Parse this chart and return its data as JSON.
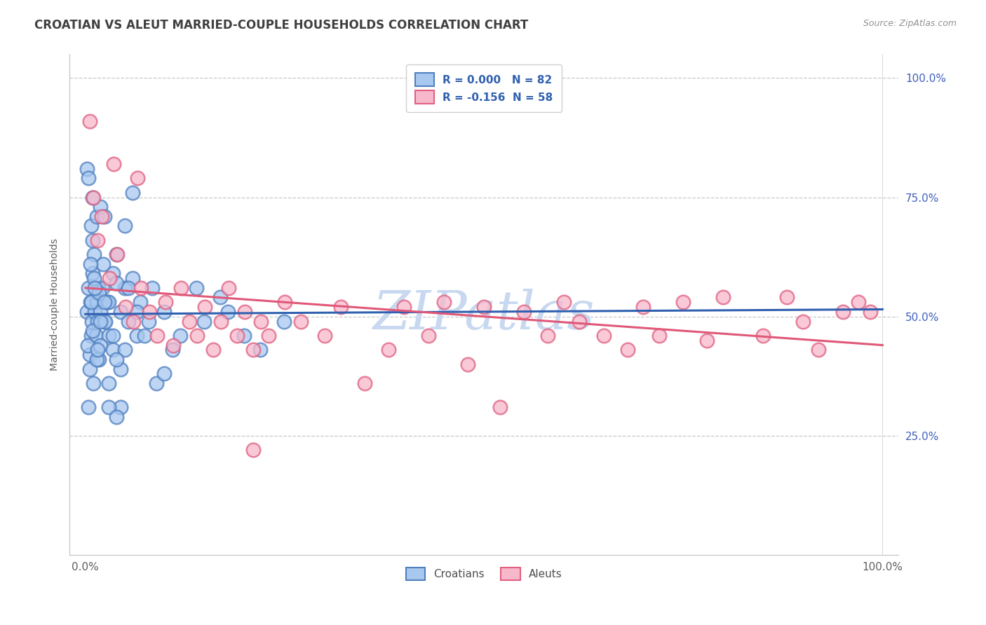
{
  "title": "CROATIAN VS ALEUT MARRIED-COUPLE HOUSEHOLDS CORRELATION CHART",
  "source": "Source: ZipAtlas.com",
  "ylabel": "Married-couple Households",
  "x_tick_labels": [
    "0.0%",
    "100.0%"
  ],
  "x_tick_positions": [
    0.0,
    100.0
  ],
  "y_tick_labels": [
    "25.0%",
    "50.0%",
    "75.0%",
    "100.0%"
  ],
  "y_tick_positions": [
    25.0,
    50.0,
    75.0,
    100.0
  ],
  "xlim": [
    -2.0,
    102.0
  ],
  "ylim": [
    0.0,
    105.0
  ],
  "legend_label_1": "R = 0.000   N = 82",
  "legend_label_2": "R = -0.156  N = 58",
  "legend_croatians": "Croatians",
  "legend_aleuts": "Aleuts",
  "color_blue_fill": "#a8c8f0",
  "color_blue_edge": "#5080c0",
  "color_pink_fill": "#f8b8cc",
  "color_pink_edge": "#e06080",
  "color_blue_line": "#3060b0",
  "color_pink_line": "#e05878",
  "color_title": "#404040",
  "color_source": "#909090",
  "color_grid": "#c8c8c8",
  "color_ytick": "#4060c0",
  "color_xtick": "#606060",
  "color_legend_text": "#3060b0",
  "watermark_text": "ZIPatlas",
  "watermark_color": "#c8d8f0",
  "background_color": "#ffffff",
  "title_fontsize": 12,
  "axis_label_fontsize": 10,
  "tick_fontsize": 11,
  "legend_fontsize": 11,
  "croatian_R": 0.0,
  "aleut_R": -0.156,
  "croatian_N": 82,
  "aleut_N": 58,
  "croatian_points": [
    [
      0.2,
      51.0
    ],
    [
      0.4,
      56.0
    ],
    [
      0.5,
      42.0
    ],
    [
      0.6,
      53.0
    ],
    [
      0.7,
      46.0
    ],
    [
      0.8,
      49.0
    ],
    [
      0.9,
      59.0
    ],
    [
      1.0,
      36.0
    ],
    [
      1.1,
      63.0
    ],
    [
      1.2,
      51.0
    ],
    [
      1.3,
      46.0
    ],
    [
      1.4,
      53.0
    ],
    [
      1.5,
      49.0
    ],
    [
      1.6,
      56.0
    ],
    [
      1.7,
      41.0
    ],
    [
      1.9,
      51.0
    ],
    [
      2.1,
      56.0
    ],
    [
      2.4,
      49.0
    ],
    [
      2.7,
      53.0
    ],
    [
      2.9,
      46.0
    ],
    [
      3.4,
      59.0
    ],
    [
      3.9,
      63.0
    ],
    [
      4.4,
      51.0
    ],
    [
      4.9,
      56.0
    ],
    [
      5.4,
      49.0
    ],
    [
      5.9,
      58.0
    ],
    [
      6.4,
      46.0
    ],
    [
      6.9,
      53.0
    ],
    [
      7.9,
      49.0
    ],
    [
      8.4,
      56.0
    ],
    [
      0.3,
      44.0
    ],
    [
      0.5,
      39.0
    ],
    [
      0.7,
      53.0
    ],
    [
      0.9,
      47.0
    ],
    [
      1.1,
      58.0
    ],
    [
      1.4,
      41.0
    ],
    [
      1.7,
      55.0
    ],
    [
      1.9,
      44.0
    ],
    [
      2.2,
      61.0
    ],
    [
      2.5,
      49.0
    ],
    [
      2.9,
      53.0
    ],
    [
      3.4,
      43.0
    ],
    [
      3.9,
      57.0
    ],
    [
      4.4,
      39.0
    ],
    [
      4.9,
      43.0
    ],
    [
      5.4,
      56.0
    ],
    [
      6.4,
      51.0
    ],
    [
      7.4,
      46.0
    ],
    [
      8.9,
      36.0
    ],
    [
      9.9,
      38.0
    ],
    [
      10.9,
      43.0
    ],
    [
      11.9,
      46.0
    ],
    [
      13.9,
      56.0
    ],
    [
      14.9,
      49.0
    ],
    [
      17.9,
      51.0
    ],
    [
      19.9,
      46.0
    ],
    [
      21.9,
      43.0
    ],
    [
      24.9,
      49.0
    ],
    [
      0.4,
      31.0
    ],
    [
      0.6,
      61.0
    ],
    [
      0.9,
      66.0
    ],
    [
      1.2,
      56.0
    ],
    [
      1.5,
      43.0
    ],
    [
      1.9,
      49.0
    ],
    [
      2.4,
      53.0
    ],
    [
      2.9,
      36.0
    ],
    [
      3.4,
      46.0
    ],
    [
      3.9,
      41.0
    ],
    [
      4.4,
      31.0
    ],
    [
      0.7,
      69.0
    ],
    [
      1.4,
      71.0
    ],
    [
      1.9,
      73.0
    ],
    [
      5.9,
      76.0
    ],
    [
      0.2,
      81.0
    ],
    [
      0.4,
      79.0
    ],
    [
      0.9,
      75.0
    ],
    [
      2.4,
      71.0
    ],
    [
      4.9,
      69.0
    ],
    [
      2.9,
      31.0
    ],
    [
      3.9,
      29.0
    ],
    [
      9.9,
      51.0
    ],
    [
      16.9,
      54.0
    ]
  ],
  "aleut_points": [
    [
      0.5,
      91.0
    ],
    [
      1.0,
      75.0
    ],
    [
      1.5,
      66.0
    ],
    [
      2.0,
      71.0
    ],
    [
      3.0,
      58.0
    ],
    [
      4.0,
      63.0
    ],
    [
      5.0,
      52.0
    ],
    [
      6.0,
      49.0
    ],
    [
      7.0,
      56.0
    ],
    [
      8.0,
      51.0
    ],
    [
      9.0,
      46.0
    ],
    [
      10.0,
      53.0
    ],
    [
      11.0,
      44.0
    ],
    [
      12.0,
      56.0
    ],
    [
      13.0,
      49.0
    ],
    [
      14.0,
      46.0
    ],
    [
      15.0,
      52.0
    ],
    [
      16.0,
      43.0
    ],
    [
      17.0,
      49.0
    ],
    [
      18.0,
      56.0
    ],
    [
      19.0,
      46.0
    ],
    [
      20.0,
      51.0
    ],
    [
      21.0,
      43.0
    ],
    [
      22.0,
      49.0
    ],
    [
      23.0,
      46.0
    ],
    [
      25.0,
      53.0
    ],
    [
      27.0,
      49.0
    ],
    [
      30.0,
      46.0
    ],
    [
      32.0,
      52.0
    ],
    [
      35.0,
      36.0
    ],
    [
      38.0,
      43.0
    ],
    [
      40.0,
      52.0
    ],
    [
      43.0,
      46.0
    ],
    [
      45.0,
      53.0
    ],
    [
      48.0,
      40.0
    ],
    [
      50.0,
      52.0
    ],
    [
      52.0,
      31.0
    ],
    [
      55.0,
      51.0
    ],
    [
      58.0,
      46.0
    ],
    [
      60.0,
      53.0
    ],
    [
      62.0,
      49.0
    ],
    [
      65.0,
      46.0
    ],
    [
      68.0,
      43.0
    ],
    [
      70.0,
      52.0
    ],
    [
      72.0,
      46.0
    ],
    [
      75.0,
      53.0
    ],
    [
      78.0,
      45.0
    ],
    [
      80.0,
      54.0
    ],
    [
      85.0,
      46.0
    ],
    [
      88.0,
      54.0
    ],
    [
      90.0,
      49.0
    ],
    [
      92.0,
      43.0
    ],
    [
      95.0,
      51.0
    ],
    [
      97.0,
      53.0
    ],
    [
      98.5,
      51.0
    ],
    [
      3.5,
      82.0
    ],
    [
      6.5,
      79.0
    ],
    [
      21.0,
      22.0
    ]
  ],
  "blue_trend_x": [
    0.0,
    100.0
  ],
  "blue_trend_y": [
    50.5,
    51.5
  ],
  "pink_trend_x": [
    0.0,
    100.0
  ],
  "pink_trend_y": [
    56.0,
    44.0
  ]
}
